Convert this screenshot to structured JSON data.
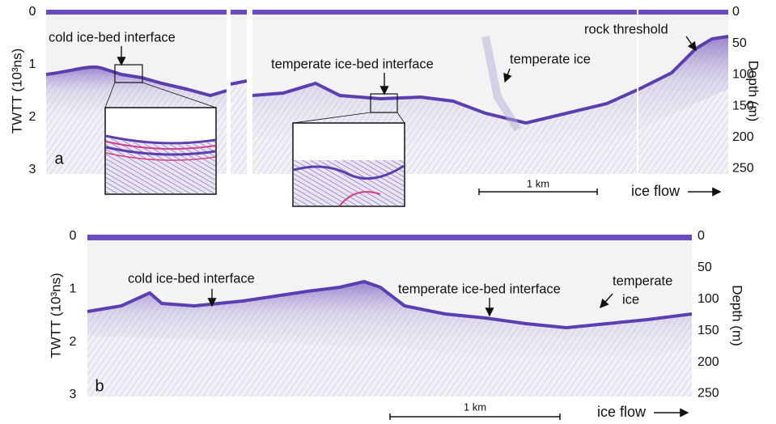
{
  "panels": [
    {
      "label": "a",
      "y_label": "TWTT (10³ns)",
      "y2_label": "Depth (m)",
      "ylim": [
        0,
        3
      ],
      "yticks": [
        0,
        1,
        2,
        3
      ],
      "y2lim": [
        0,
        252
      ],
      "y2ticks": [
        0,
        50,
        100,
        150,
        200,
        250
      ],
      "annotations": [
        "cold ice-bed interface",
        "temperate ice-bed interface",
        "temperate ice",
        "rock threshold"
      ],
      "scale_bar": "1 km",
      "flow_label": "ice flow"
    },
    {
      "label": "b",
      "y_label": "TWTT (10³ns)",
      "y2_label": "Depth (m)",
      "ylim": [
        0,
        3
      ],
      "yticks": [
        0,
        1,
        2,
        3
      ],
      "y2lim": [
        0,
        252
      ],
      "y2ticks": [
        0,
        50,
        100,
        150,
        200,
        250
      ],
      "annotations": [
        "cold ice-bed interface",
        "temperate ice-bed interface",
        [
          "temperate",
          "ice"
        ]
      ],
      "scale_bar": "1 km",
      "flow_label": "ice flow"
    }
  ]
}
